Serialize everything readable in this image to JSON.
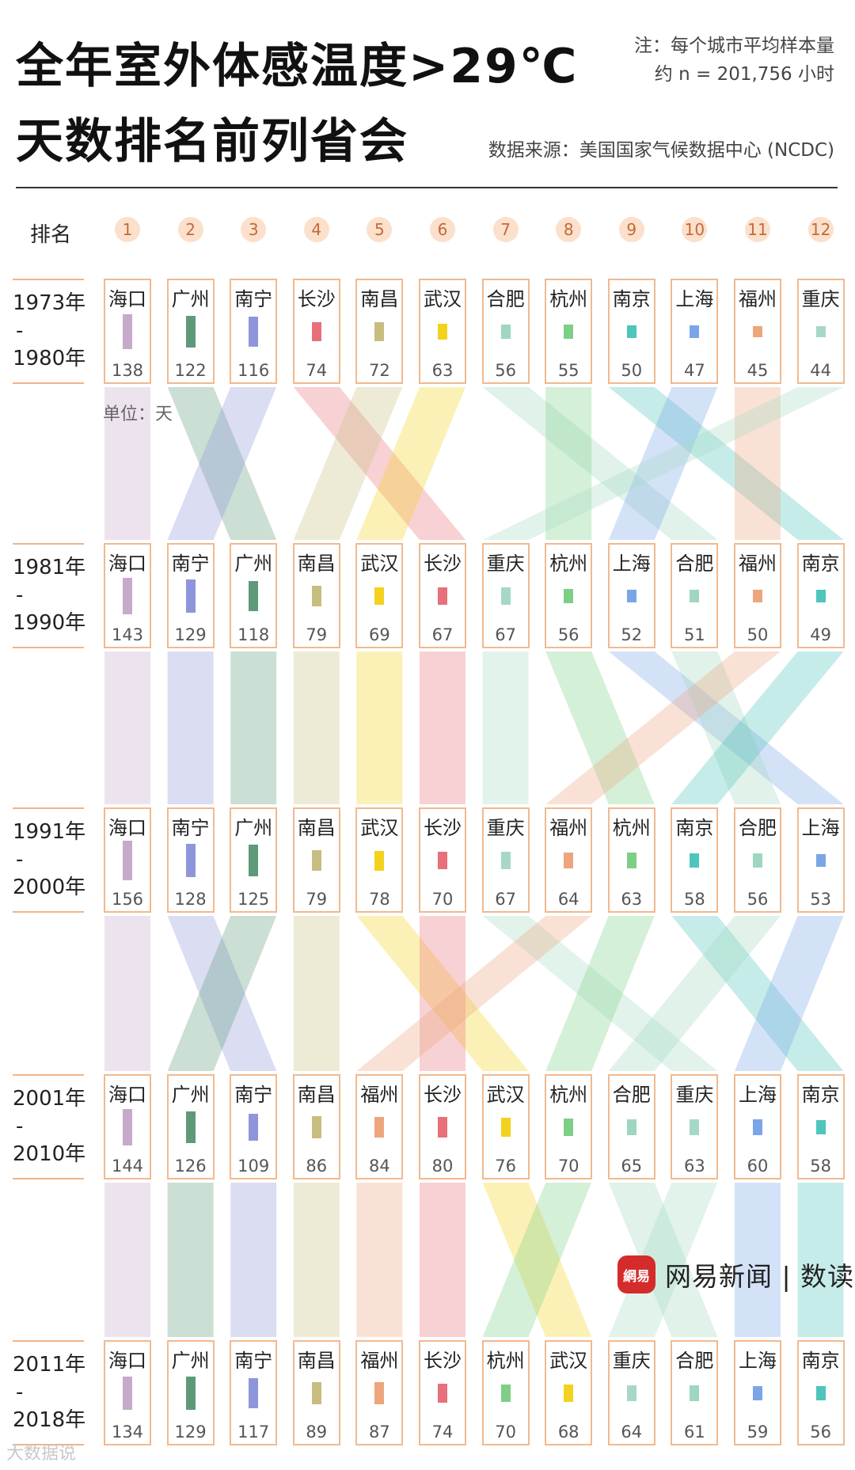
{
  "header": {
    "title_line1": "全年室外体感温度>29℃",
    "title_line2": "天数排名前列省会",
    "note_line1": "注：每个城市平均样本量",
    "note_line2": "约 n = 201,756 小时",
    "source": "数据来源：美国国家气候数据中心 (NCDC)"
  },
  "rank_label": "排名",
  "unit_label": "单位：天",
  "logo": {
    "badge": "網易",
    "text": "网易新闻 | 数读"
  },
  "watermark": "大数据说",
  "city_colors": {
    "海口": "#c7a9cc",
    "广州": "#5e9a7a",
    "南宁": "#8e96db",
    "长沙": "#e8707a",
    "南昌": "#c8bd80",
    "武汉": "#f2d21f",
    "合肥": "#9fd6bf",
    "杭州": "#7dcf86",
    "南京": "#4fc5bb",
    "上海": "#7aa6e8",
    "福州": "#eda57d",
    "重庆": "#a6d9c5"
  },
  "chart_data": {
    "type": "table",
    "ranks": [
      "1",
      "2",
      "3",
      "4",
      "5",
      "6",
      "7",
      "8",
      "9",
      "10",
      "11",
      "12"
    ],
    "periods": [
      {
        "label_start": "1973年",
        "label_end": "1980年",
        "cities": [
          "海口",
          "广州",
          "南宁",
          "长沙",
          "南昌",
          "武汉",
          "合肥",
          "杭州",
          "南京",
          "上海",
          "福州",
          "重庆"
        ],
        "values": [
          138,
          122,
          116,
          74,
          72,
          63,
          56,
          55,
          50,
          47,
          45,
          44
        ]
      },
      {
        "label_start": "1981年",
        "label_end": "1990年",
        "cities": [
          "海口",
          "南宁",
          "广州",
          "南昌",
          "武汉",
          "长沙",
          "重庆",
          "杭州",
          "上海",
          "合肥",
          "福州",
          "南京"
        ],
        "values": [
          143,
          129,
          118,
          79,
          69,
          67,
          67,
          56,
          52,
          51,
          50,
          49
        ]
      },
      {
        "label_start": "1991年",
        "label_end": "2000年",
        "cities": [
          "海口",
          "南宁",
          "广州",
          "南昌",
          "武汉",
          "长沙",
          "重庆",
          "福州",
          "杭州",
          "南京",
          "合肥",
          "上海"
        ],
        "values": [
          156,
          128,
          125,
          79,
          78,
          70,
          67,
          64,
          63,
          58,
          56,
          53
        ]
      },
      {
        "label_start": "2001年",
        "label_end": "2010年",
        "cities": [
          "海口",
          "广州",
          "南宁",
          "南昌",
          "福州",
          "长沙",
          "武汉",
          "杭州",
          "合肥",
          "重庆",
          "上海",
          "南京"
        ],
        "values": [
          144,
          126,
          109,
          86,
          84,
          80,
          76,
          70,
          65,
          63,
          60,
          58
        ]
      },
      {
        "label_start": "2011年",
        "label_end": "2018年",
        "cities": [
          "海口",
          "广州",
          "南宁",
          "南昌",
          "福州",
          "长沙",
          "杭州",
          "武汉",
          "重庆",
          "合肥",
          "上海",
          "南京"
        ],
        "values": [
          134,
          129,
          117,
          89,
          87,
          74,
          70,
          68,
          64,
          61,
          59,
          56
        ]
      }
    ]
  }
}
